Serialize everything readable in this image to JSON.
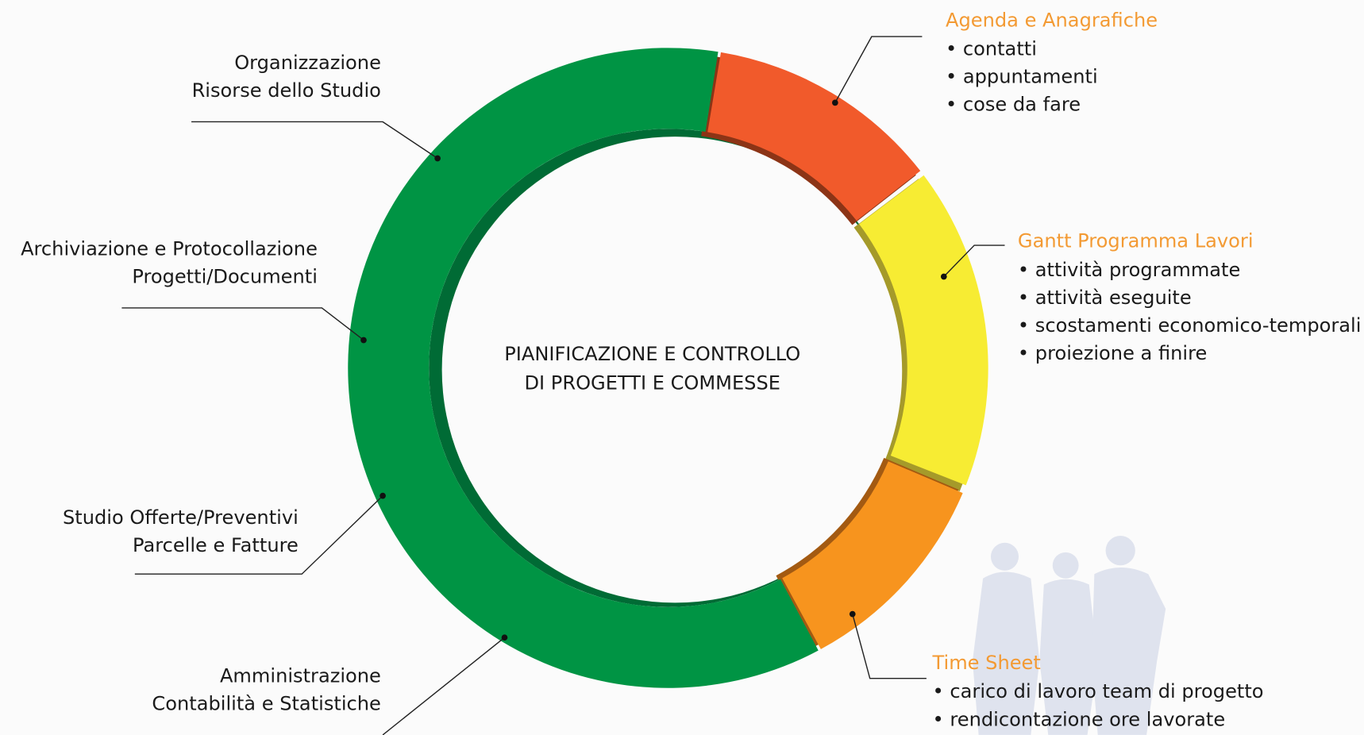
{
  "center_title": [
    "PIANIFICAZIONE E CONTROLLO",
    "DI PROGETTI E COMMESSE"
  ],
  "left_labels": [
    {
      "lines": [
        "Organizzazione",
        "Risorse dello Studio"
      ]
    },
    {
      "lines": [
        "Archiviazione e Protocollazione",
        "Progetti/Documenti"
      ]
    },
    {
      "lines": [
        "Studio Offerte/Preventivi",
        "Parcelle e Fatture"
      ]
    },
    {
      "lines": [
        "Amministrazione",
        "Contabilità e Statistiche"
      ]
    }
  ],
  "right_sections": [
    {
      "title": "Agenda e Anagrafiche",
      "items": [
        "• contatti",
        "• appuntamenti",
        "• cose da fare"
      ]
    },
    {
      "title": "Gantt Programma Lavori",
      "items": [
        "• attività programmate",
        "• attività eseguite",
        "• scostamenti economico-temporali",
        "• proiezione a finire"
      ]
    },
    {
      "title": "Time Sheet",
      "items": [
        "• carico di lavoro team di progetto",
        "• rendicontazione ore lavorate"
      ]
    }
  ]
}
